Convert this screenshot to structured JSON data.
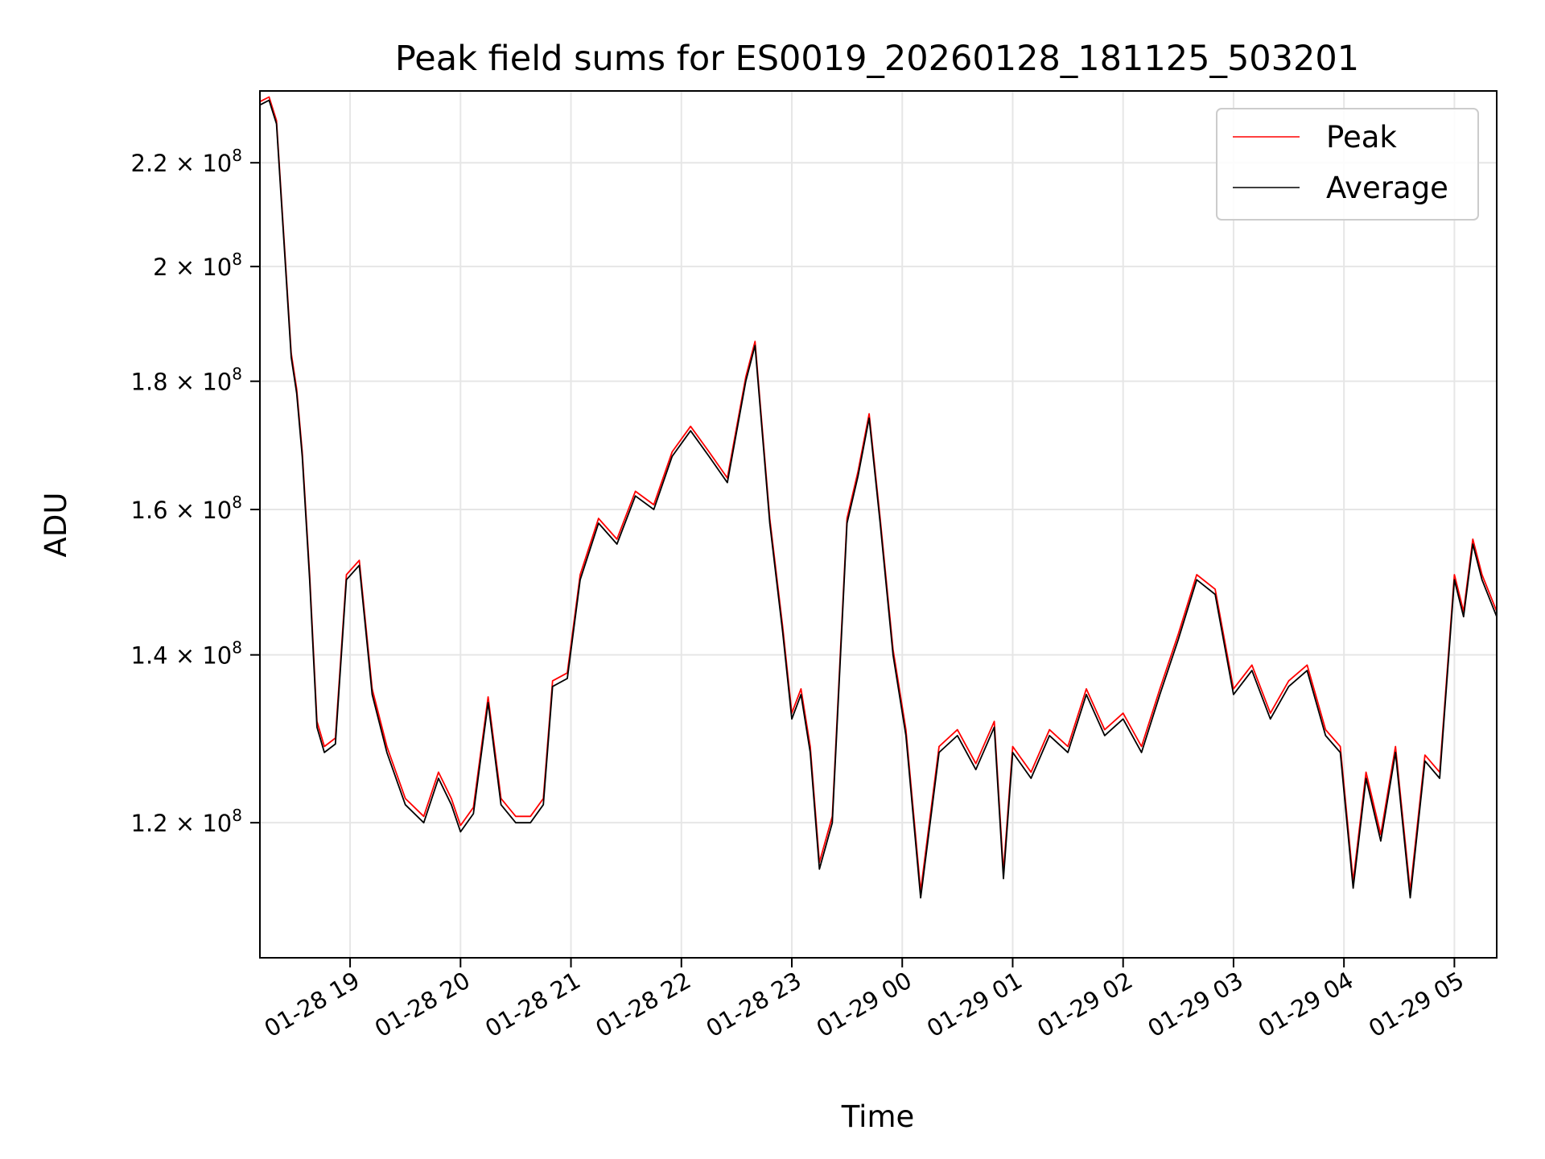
{
  "chart_data": {
    "type": "line",
    "title": "Peak field sums for ES0019_20260128_181125_503201",
    "xlabel": "Time",
    "ylabel": "ADU",
    "yscale": "log",
    "grid": true,
    "legend_position": "upper right",
    "xlim": [
      "2026-01-28 18:11",
      "2026-01-29 05:23"
    ],
    "ylim": [
      106000000,
      235000000
    ],
    "x_ticks": [
      "01-28 19",
      "01-28 20",
      "01-28 21",
      "01-28 22",
      "01-28 23",
      "01-29 00",
      "01-29 01",
      "01-29 02",
      "01-29 03",
      "01-29 04",
      "01-29 05"
    ],
    "x_tick_times": [
      "2026-01-28 19:00",
      "2026-01-28 20:00",
      "2026-01-28 21:00",
      "2026-01-28 22:00",
      "2026-01-28 23:00",
      "2026-01-29 00:00",
      "2026-01-29 01:00",
      "2026-01-29 02:00",
      "2026-01-29 03:00",
      "2026-01-29 04:00",
      "2026-01-29 05:00"
    ],
    "y_ticks": [
      {
        "value": 120000000,
        "mantissa": "1.2",
        "exp": "8"
      },
      {
        "value": 140000000,
        "mantissa": "1.4",
        "exp": "8"
      },
      {
        "value": 160000000,
        "mantissa": "1.6",
        "exp": "8"
      },
      {
        "value": 180000000,
        "mantissa": "1.8",
        "exp": "8"
      },
      {
        "value": 200000000,
        "mantissa": "2",
        "exp": "8"
      },
      {
        "value": 220000000,
        "mantissa": "2.2",
        "exp": "8"
      }
    ],
    "series": [
      {
        "name": "Peak",
        "color": "#ff0000",
        "offset": 700000
      },
      {
        "name": "Average",
        "color": "#000000",
        "offset": 0
      }
    ],
    "x": [
      "2026-01-28 18:11",
      "2026-01-28 18:16",
      "2026-01-28 18:20",
      "2026-01-28 18:24",
      "2026-01-28 18:28",
      "2026-01-28 18:31",
      "2026-01-28 18:34",
      "2026-01-28 18:38",
      "2026-01-28 18:42",
      "2026-01-28 18:46",
      "2026-01-28 18:52",
      "2026-01-28 18:58",
      "2026-01-28 19:05",
      "2026-01-28 19:12",
      "2026-01-28 19:20",
      "2026-01-28 19:30",
      "2026-01-28 19:40",
      "2026-01-28 19:48",
      "2026-01-28 19:55",
      "2026-01-28 20:00",
      "2026-01-28 20:07",
      "2026-01-28 20:15",
      "2026-01-28 20:22",
      "2026-01-28 20:30",
      "2026-01-28 20:38",
      "2026-01-28 20:45",
      "2026-01-28 20:50",
      "2026-01-28 20:58",
      "2026-01-28 21:05",
      "2026-01-28 21:15",
      "2026-01-28 21:25",
      "2026-01-28 21:35",
      "2026-01-28 21:45",
      "2026-01-28 21:55",
      "2026-01-28 22:05",
      "2026-01-28 22:15",
      "2026-01-28 22:25",
      "2026-01-28 22:35",
      "2026-01-28 22:40",
      "2026-01-28 22:48",
      "2026-01-28 22:55",
      "2026-01-28 23:00",
      "2026-01-28 23:05",
      "2026-01-28 23:10",
      "2026-01-28 23:15",
      "2026-01-28 23:22",
      "2026-01-28 23:30",
      "2026-01-28 23:36",
      "2026-01-28 23:42",
      "2026-01-28 23:48",
      "2026-01-28 23:55",
      "2026-01-29 00:02",
      "2026-01-29 00:10",
      "2026-01-29 00:20",
      "2026-01-29 00:30",
      "2026-01-29 00:40",
      "2026-01-29 00:50",
      "2026-01-29 00:55",
      "2026-01-29 01:00",
      "2026-01-29 01:10",
      "2026-01-29 01:20",
      "2026-01-29 01:30",
      "2026-01-29 01:40",
      "2026-01-29 01:50",
      "2026-01-29 02:00",
      "2026-01-29 02:10",
      "2026-01-29 02:20",
      "2026-01-29 02:30",
      "2026-01-29 02:40",
      "2026-01-29 02:50",
      "2026-01-29 03:00",
      "2026-01-29 03:10",
      "2026-01-29 03:20",
      "2026-01-29 03:30",
      "2026-01-29 03:40",
      "2026-01-29 03:50",
      "2026-01-29 03:58",
      "2026-01-29 04:05",
      "2026-01-29 04:12",
      "2026-01-29 04:20",
      "2026-01-29 04:28",
      "2026-01-29 04:36",
      "2026-01-29 04:44",
      "2026-01-29 04:52",
      "2026-01-29 05:00",
      "2026-01-29 05:05",
      "2026-01-29 05:10",
      "2026-01-29 05:15",
      "2026-01-29 05:23"
    ],
    "y": [
      232000000,
      233000000,
      228000000,
      205000000,
      184000000,
      178000000,
      168000000,
      150000000,
      131000000,
      128000000,
      129000000,
      150000000,
      152000000,
      135000000,
      128000000,
      122000000,
      120000000,
      125000000,
      122000000,
      119000000,
      121000000,
      134000000,
      122000000,
      120000000,
      120000000,
      122000000,
      136000000,
      137000000,
      150000000,
      158000000,
      155000000,
      162000000,
      160000000,
      168000000,
      172000000,
      168000000,
      164000000,
      180000000,
      186000000,
      158000000,
      143000000,
      132000000,
      135000000,
      128000000,
      115000000,
      120000000,
      158000000,
      165000000,
      174000000,
      158000000,
      140000000,
      130000000,
      112000000,
      128000000,
      130000000,
      126000000,
      131000000,
      114000000,
      128000000,
      125000000,
      130000000,
      128000000,
      135000000,
      130000000,
      132000000,
      128000000,
      135000000,
      142000000,
      150000000,
      148000000,
      135000000,
      138000000,
      132000000,
      136000000,
      138000000,
      130000000,
      128000000,
      113000000,
      125000000,
      118000000,
      128000000,
      112000000,
      127000000,
      125000000,
      150000000,
      145000000,
      155000000,
      150000000,
      145000000
    ]
  }
}
